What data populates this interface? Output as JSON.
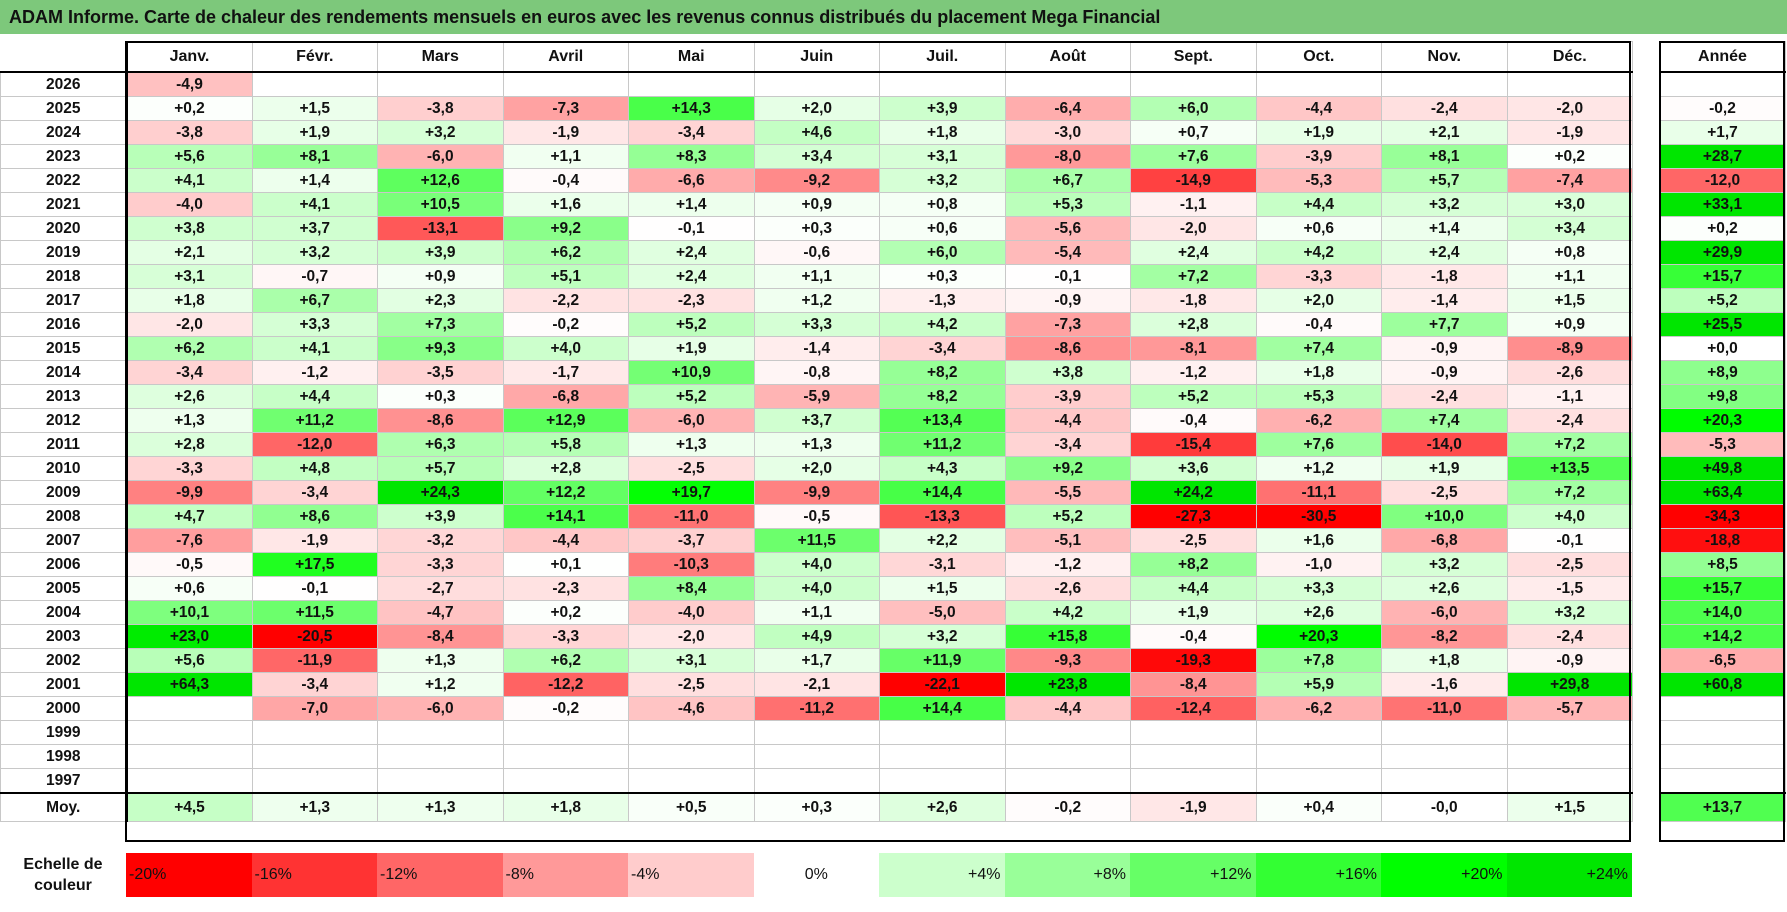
{
  "header": {
    "title": "ADAM Informe. Carte de chaleur des rendements mensuels en euros avec les revenus connus distribués du placement Mega Financial"
  },
  "chart_data": {
    "type": "heatmap",
    "title": "ADAM Informe. Carte de chaleur des rendements mensuels en euros avec les revenus connus distribués du placement Mega Financial",
    "columns": [
      "Janv.",
      "Févr.",
      "Mars",
      "Avril",
      "Mai",
      "Juin",
      "Juil.",
      "Août",
      "Sept.",
      "Oct.",
      "Nov.",
      "Déc."
    ],
    "year_column": "Année",
    "rows": [
      {
        "year": "2026",
        "values": [
          "-4,9",
          "",
          "",
          "",
          "",
          "",
          "",
          "",
          "",
          "",
          "",
          ""
        ],
        "annual": ""
      },
      {
        "year": "2025",
        "values": [
          "+0,2",
          "+1,5",
          "-3,8",
          "-7,3",
          "+14,3",
          "+2,0",
          "+3,9",
          "-6,4",
          "+6,0",
          "-4,4",
          "-2,4",
          "-2,0"
        ],
        "annual": "-0,2"
      },
      {
        "year": "2024",
        "values": [
          "-3,8",
          "+1,9",
          "+3,2",
          "-1,9",
          "-3,4",
          "+4,6",
          "+1,8",
          "-3,0",
          "+0,7",
          "+1,9",
          "+2,1",
          "-1,9"
        ],
        "annual": "+1,7"
      },
      {
        "year": "2023",
        "values": [
          "+5,6",
          "+8,1",
          "-6,0",
          "+1,1",
          "+8,3",
          "+3,4",
          "+3,1",
          "-8,0",
          "+7,6",
          "-3,9",
          "+8,1",
          "+0,2"
        ],
        "annual": "+28,7"
      },
      {
        "year": "2022",
        "values": [
          "+4,1",
          "+1,4",
          "+12,6",
          "-0,4",
          "-6,6",
          "-9,2",
          "+3,2",
          "+6,7",
          "-14,9",
          "-5,3",
          "+5,7",
          "-7,4"
        ],
        "annual": "-12,0"
      },
      {
        "year": "2021",
        "values": [
          "-4,0",
          "+4,1",
          "+10,5",
          "+1,6",
          "+1,4",
          "+0,9",
          "+0,8",
          "+5,3",
          "-1,1",
          "+4,4",
          "+3,2",
          "+3,0"
        ],
        "annual": "+33,1"
      },
      {
        "year": "2020",
        "values": [
          "+3,8",
          "+3,7",
          "-13,1",
          "+9,2",
          "-0,1",
          "+0,3",
          "+0,6",
          "-5,6",
          "-2,0",
          "+0,6",
          "+1,4",
          "+3,4"
        ],
        "annual": "+0,2"
      },
      {
        "year": "2019",
        "values": [
          "+2,1",
          "+3,2",
          "+3,9",
          "+6,2",
          "+2,4",
          "-0,6",
          "+6,0",
          "-5,4",
          "+2,4",
          "+4,2",
          "+2,4",
          "+0,8"
        ],
        "annual": "+29,9"
      },
      {
        "year": "2018",
        "values": [
          "+3,1",
          "-0,7",
          "+0,9",
          "+5,1",
          "+2,4",
          "+1,1",
          "+0,3",
          "-0,1",
          "+7,2",
          "-3,3",
          "-1,8",
          "+1,1"
        ],
        "annual": "+15,7"
      },
      {
        "year": "2017",
        "values": [
          "+1,8",
          "+6,7",
          "+2,3",
          "-2,2",
          "-2,3",
          "+1,2",
          "-1,3",
          "-0,9",
          "-1,8",
          "+2,0",
          "-1,4",
          "+1,5"
        ],
        "annual": "+5,2"
      },
      {
        "year": "2016",
        "values": [
          "-2,0",
          "+3,3",
          "+7,3",
          "-0,2",
          "+5,2",
          "+3,3",
          "+4,2",
          "-7,3",
          "+2,8",
          "-0,4",
          "+7,7",
          "+0,9"
        ],
        "annual": "+25,5"
      },
      {
        "year": "2015",
        "values": [
          "+6,2",
          "+4,1",
          "+9,3",
          "+4,0",
          "+1,9",
          "-1,4",
          "-3,4",
          "-8,6",
          "-8,1",
          "+7,4",
          "-0,9",
          "-8,9"
        ],
        "annual": "+0,0"
      },
      {
        "year": "2014",
        "values": [
          "-3,4",
          "-1,2",
          "-3,5",
          "-1,7",
          "+10,9",
          "-0,8",
          "+8,2",
          "+3,8",
          "-1,2",
          "+1,8",
          "-0,9",
          "-2,6"
        ],
        "annual": "+8,9"
      },
      {
        "year": "2013",
        "values": [
          "+2,6",
          "+4,4",
          "+0,3",
          "-6,8",
          "+5,2",
          "-5,9",
          "+8,2",
          "-3,9",
          "+5,2",
          "+5,3",
          "-2,4",
          "-1,1"
        ],
        "annual": "+9,8"
      },
      {
        "year": "2012",
        "values": [
          "+1,3",
          "+11,2",
          "-8,6",
          "+12,9",
          "-6,0",
          "+3,7",
          "+13,4",
          "-4,4",
          "-0,4",
          "-6,2",
          "+7,4",
          "-2,4"
        ],
        "annual": "+20,3"
      },
      {
        "year": "2011",
        "values": [
          "+2,8",
          "-12,0",
          "+6,3",
          "+5,8",
          "+1,3",
          "+1,3",
          "+11,2",
          "-3,4",
          "-15,4",
          "+7,6",
          "-14,0",
          "+7,2"
        ],
        "annual": "-5,3"
      },
      {
        "year": "2010",
        "values": [
          "-3,3",
          "+4,8",
          "+5,7",
          "+2,8",
          "-2,5",
          "+2,0",
          "+4,3",
          "+9,2",
          "+3,6",
          "+1,2",
          "+1,9",
          "+13,5"
        ],
        "annual": "+49,8"
      },
      {
        "year": "2009",
        "values": [
          "-9,9",
          "-3,4",
          "+24,3",
          "+12,2",
          "+19,7",
          "-9,9",
          "+14,4",
          "-5,5",
          "+24,2",
          "-11,1",
          "-2,5",
          "+7,2"
        ],
        "annual": "+63,4"
      },
      {
        "year": "2008",
        "values": [
          "+4,7",
          "+8,6",
          "+3,9",
          "+14,1",
          "-11,0",
          "-0,5",
          "-13,3",
          "+5,2",
          "-27,3",
          "-30,5",
          "+10,0",
          "+4,0"
        ],
        "annual": "-34,3"
      },
      {
        "year": "2007",
        "values": [
          "-7,6",
          "-1,9",
          "-3,2",
          "-4,4",
          "-3,7",
          "+11,5",
          "+2,2",
          "-5,1",
          "-2,5",
          "+1,6",
          "-6,8",
          "-0,1"
        ],
        "annual": "-18,8"
      },
      {
        "year": "2006",
        "values": [
          "-0,5",
          "+17,5",
          "-3,3",
          "+0,1",
          "-10,3",
          "+4,0",
          "-3,1",
          "-1,2",
          "+8,2",
          "-1,0",
          "+3,2",
          "-2,5"
        ],
        "annual": "+8,5"
      },
      {
        "year": "2005",
        "values": [
          "+0,6",
          "-0,1",
          "-2,7",
          "-2,3",
          "+8,4",
          "+4,0",
          "+1,5",
          "-2,6",
          "+4,4",
          "+3,3",
          "+2,6",
          "-1,5"
        ],
        "annual": "+15,7"
      },
      {
        "year": "2004",
        "values": [
          "+10,1",
          "+11,5",
          "-4,7",
          "+0,2",
          "-4,0",
          "+1,1",
          "-5,0",
          "+4,2",
          "+1,9",
          "+2,6",
          "-6,0",
          "+3,2"
        ],
        "annual": "+14,0"
      },
      {
        "year": "2003",
        "values": [
          "+23,0",
          "-20,5",
          "-8,4",
          "-3,3",
          "-2,0",
          "+4,9",
          "+3,2",
          "+15,8",
          "-0,4",
          "+20,3",
          "-8,2",
          "-2,4"
        ],
        "annual": "+14,2"
      },
      {
        "year": "2002",
        "values": [
          "+5,6",
          "-11,9",
          "+1,3",
          "+6,2",
          "+3,1",
          "+1,7",
          "+11,9",
          "-9,3",
          "-19,3",
          "+7,8",
          "+1,8",
          "-0,9"
        ],
        "annual": "-6,5"
      },
      {
        "year": "2001",
        "values": [
          "+64,3",
          "-3,4",
          "+1,2",
          "-12,2",
          "-2,5",
          "-2,1",
          "-22,1",
          "+23,8",
          "-8,4",
          "+5,9",
          "-1,6",
          "+29,8"
        ],
        "annual": "+60,8"
      },
      {
        "year": "2000",
        "values": [
          "",
          "-7,0",
          "-6,0",
          "-0,2",
          "-4,6",
          "-11,2",
          "+14,4",
          "-4,4",
          "-12,4",
          "-6,2",
          "-11,0",
          "-5,7"
        ],
        "annual": ""
      },
      {
        "year": "1999",
        "values": [
          "",
          "",
          "",
          "",
          "",
          "",
          "",
          "",
          "",
          "",
          "",
          ""
        ],
        "annual": ""
      },
      {
        "year": "1998",
        "values": [
          "",
          "",
          "",
          "",
          "",
          "",
          "",
          "",
          "",
          "",
          "",
          ""
        ],
        "annual": ""
      },
      {
        "year": "1997",
        "values": [
          "",
          "",
          "",
          "",
          "",
          "",
          "",
          "",
          "",
          "",
          "",
          ""
        ],
        "annual": ""
      }
    ],
    "average": {
      "label": "Moy.",
      "values": [
        "+4,5",
        "+1,3",
        "+1,3",
        "+1,8",
        "+0,5",
        "+0,3",
        "+2,6",
        "-0,2",
        "-1,9",
        "+0,4",
        "-0,0",
        "+1,5"
      ],
      "annual": "+13,7"
    },
    "color_scale": {
      "label": "Echelle de couleur",
      "stops": [
        {
          "label": "-20%",
          "value": -20,
          "color": "#ff0000"
        },
        {
          "label": "-16%",
          "value": -16,
          "color": "#ff3333"
        },
        {
          "label": "-12%",
          "value": -12,
          "color": "#ff6666"
        },
        {
          "label": "-8%",
          "value": -8,
          "color": "#ff9999"
        },
        {
          "label": "-4%",
          "value": -4,
          "color": "#ffcccc"
        },
        {
          "label": "0%",
          "value": 0,
          "color": "#ffffff"
        },
        {
          "label": "+4%",
          "value": 4,
          "color": "#ccffcc"
        },
        {
          "label": "+8%",
          "value": 8,
          "color": "#99ff99"
        },
        {
          "label": "+12%",
          "value": 12,
          "color": "#66ff66"
        },
        {
          "label": "+16%",
          "value": 16,
          "color": "#33ff33"
        },
        {
          "label": "+20%",
          "value": 20,
          "color": "#00ff00"
        },
        {
          "label": "+24%",
          "value": 24,
          "color": "#00e600"
        }
      ]
    }
  }
}
